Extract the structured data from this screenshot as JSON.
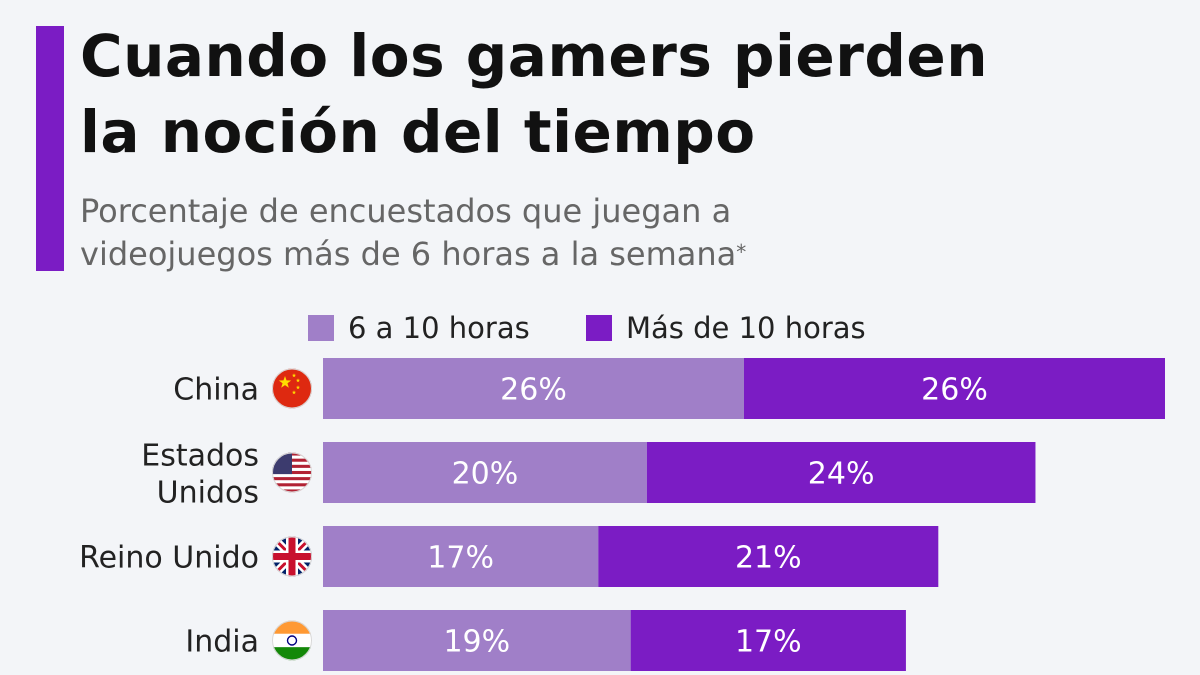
{
  "header": {
    "title_line1": "Cuando los gamers pierden",
    "title_line2": "la noción del tiempo",
    "subtitle_line1": "Porcentaje de encuestados que juegan a",
    "subtitle_line2": "videojuegos más de 6 horas a la semana",
    "footnote_mark": "*"
  },
  "colors": {
    "accent": "#7b1cc4",
    "series_light": "#a07fc8",
    "series_dark": "#7b1cc4",
    "background": "#f3f5f8"
  },
  "chart_data": {
    "type": "bar",
    "orientation": "horizontal",
    "stacked": true,
    "title": "Cuando los gamers pierden la noción del tiempo",
    "subtitle": "Porcentaje de encuestados que juegan a videojuegos más de 6 horas a la semana*",
    "categories": [
      "China",
      "Estados Unidos",
      "Reino Unido",
      "India"
    ],
    "category_flags": [
      "china-flag-icon",
      "usa-flag-icon",
      "uk-flag-icon",
      "india-flag-icon"
    ],
    "series": [
      {
        "name": "6 a 10 horas",
        "color": "#a07fc8",
        "values": [
          26,
          20,
          17,
          19
        ],
        "labels": [
          "26%",
          "20%",
          "17%",
          "19%"
        ]
      },
      {
        "name": "Más de 10 horas",
        "color": "#7b1cc4",
        "values": [
          26,
          24,
          21,
          17
        ],
        "labels": [
          "26%",
          "24%",
          "21%",
          "17%"
        ]
      }
    ],
    "xlim": [
      0,
      52
    ],
    "legend_position": "top-center",
    "grid": false,
    "xlabel": "",
    "ylabel": ""
  }
}
